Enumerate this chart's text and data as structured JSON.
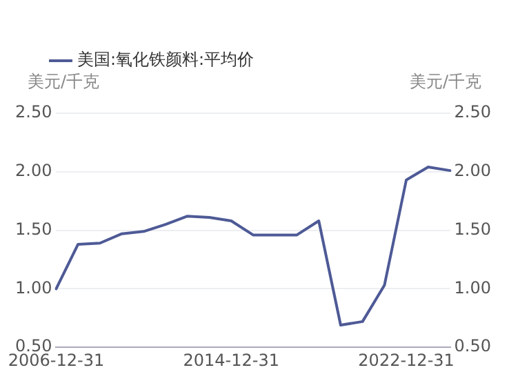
{
  "chart_data": {
    "type": "line",
    "ylabel": "美元/千克",
    "y2label": "美元/千克",
    "categories": [
      "2006-12-31",
      null,
      null,
      null,
      null,
      null,
      null,
      null,
      "2014-12-31",
      null,
      null,
      null,
      null,
      null,
      null,
      null,
      "2022-12-31",
      null,
      null
    ],
    "series": [
      {
        "name": "美国:氧化铁颜料:平均价",
        "color": "#4e5a96",
        "values": [
          1.0,
          1.38,
          1.39,
          1.47,
          1.49,
          1.55,
          1.62,
          1.61,
          1.58,
          1.46,
          1.46,
          1.46,
          1.58,
          0.69,
          0.72,
          1.03,
          1.93,
          2.04,
          2.01
        ]
      }
    ],
    "ylim": [
      0.5,
      2.5
    ],
    "yticks": [
      {
        "value": 0.5,
        "label": "0.50"
      },
      {
        "value": 1,
        "label": "1.00"
      },
      {
        "value": 1.5,
        "label": "1.50"
      },
      {
        "value": 2,
        "label": "2.00"
      },
      {
        "value": 2.5,
        "label": "2.50"
      }
    ],
    "y2lim": [
      0.5,
      2.5
    ],
    "y2ticks": [
      {
        "value": 0.5,
        "label": "0.50"
      },
      {
        "value": 1,
        "label": "1.00"
      },
      {
        "value": 1.5,
        "label": "1.50"
      },
      {
        "value": 2,
        "label": "2.00"
      },
      {
        "value": 2.5,
        "label": "2.50"
      }
    ],
    "grid": "y",
    "legend": "top left",
    "marker": "none",
    "line_style": "solid"
  }
}
